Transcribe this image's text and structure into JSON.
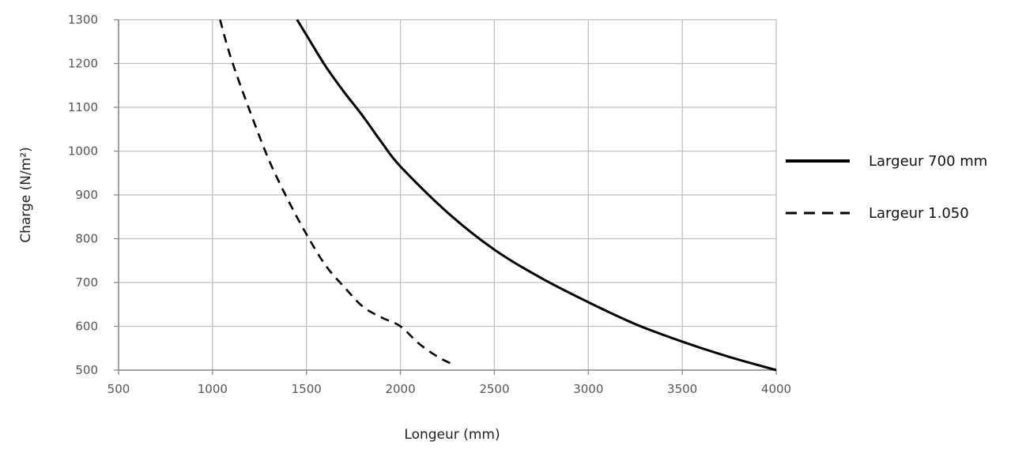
{
  "chart_data": {
    "type": "line",
    "title": "",
    "xlabel": "Longeur (mm)",
    "ylabel": "Charge (N/m²)",
    "xlim": [
      500,
      4000
    ],
    "ylim": [
      500,
      1300
    ],
    "xticks": [
      "500",
      "1000",
      "1500",
      "2000",
      "2500",
      "3000",
      "3500",
      "4000"
    ],
    "yticks": [
      "500",
      "600",
      "700",
      "800",
      "900",
      "1000",
      "1100",
      "1200",
      "1300"
    ],
    "grid": true,
    "legend_position": "right",
    "series": [
      {
        "name": "Largeur 700 mm",
        "style": "solid",
        "color": "#000000",
        "x": [
          1450,
          1500,
          1600,
          1700,
          1800,
          1900,
          2000,
          2250,
          2500,
          2750,
          3000,
          3250,
          3500,
          3750,
          4000
        ],
        "y": [
          1300,
          1265,
          1195,
          1135,
          1080,
          1020,
          965,
          860,
          775,
          710,
          655,
          605,
          565,
          530,
          500
        ]
      },
      {
        "name": "Largeur 1.050",
        "style": "dashed",
        "color": "#000000",
        "x": [
          1040,
          1100,
          1200,
          1300,
          1400,
          1500,
          1600,
          1700,
          1800,
          1900,
          2000,
          2100,
          2200,
          2270
        ],
        "y": [
          1300,
          1210,
          1090,
          980,
          890,
          810,
          740,
          690,
          645,
          620,
          600,
          560,
          530,
          515
        ]
      }
    ]
  }
}
